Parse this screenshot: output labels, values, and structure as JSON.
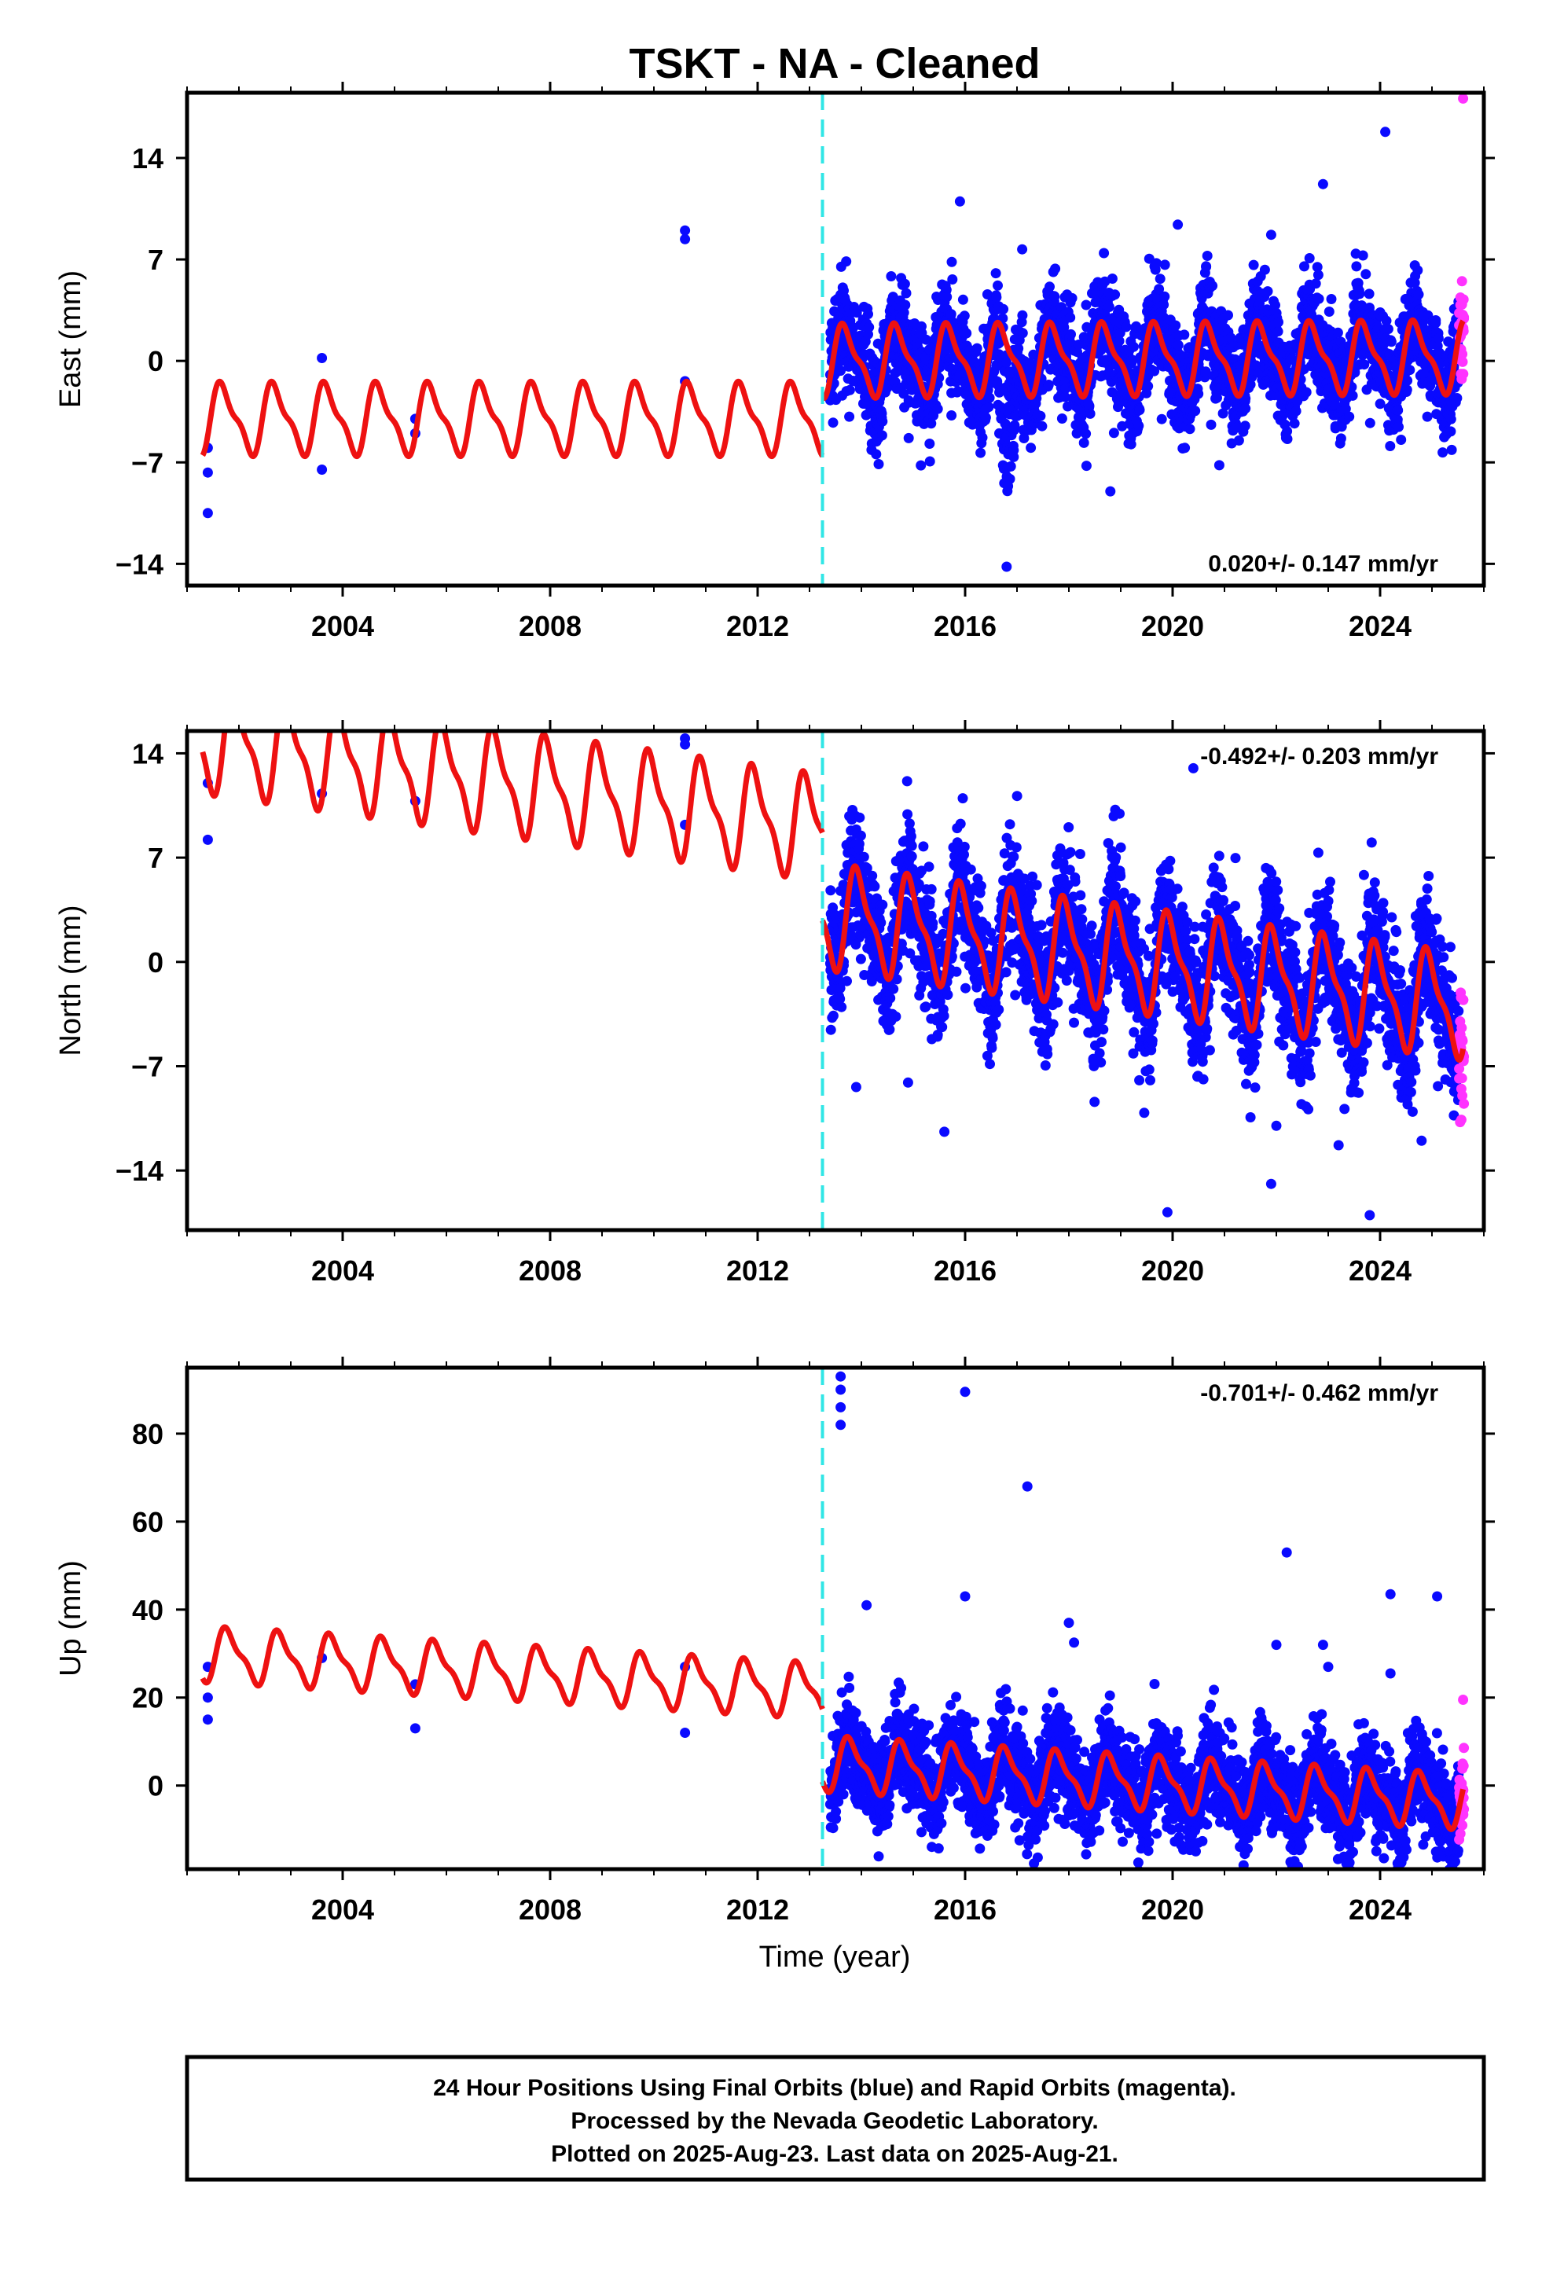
{
  "chart_data": {
    "type": "scatter",
    "title": "TSKT  - NA - Cleaned",
    "x_axis": {
      "label": "Time (year)",
      "range": [
        2001.0,
        2026.0
      ],
      "ticks": [
        2004,
        2008,
        2012,
        2016,
        2020,
        2024
      ]
    },
    "event_line": {
      "x": 2013.25,
      "color": "#30e6e6",
      "style": "dashed"
    },
    "colors": {
      "final": "#0a0aff",
      "rapid": "#ff33ff",
      "model": "#ee1111"
    },
    "rapid_start": 2025.52,
    "panels": [
      {
        "id": "east",
        "ylabel": "East (mm)",
        "ylim": [
          -15.5,
          18.5
        ],
        "yticks": [
          -14,
          -7,
          0,
          7,
          14
        ],
        "rate_text": "0.020+/- 0.147 mm/yr",
        "rate_position": "bottom-right",
        "model": {
          "pre": {
            "offset": -4.0,
            "trend": 0.0,
            "amp": 2.2,
            "phase": 0.55
          },
          "post": {
            "offset": 0.0,
            "trend": 0.02,
            "amp": 2.2,
            "phase": 0.55
          }
        },
        "scatter": {
          "noise": 1.8,
          "spike_year": 2016.8,
          "spike_depth": -11.0
        },
        "outliers": [
          {
            "x": 2001.4,
            "y": -10.5
          },
          {
            "x": 2001.4,
            "y": -7.7
          },
          {
            "x": 2001.4,
            "y": -6.0
          },
          {
            "x": 2003.6,
            "y": 0.2
          },
          {
            "x": 2003.6,
            "y": -7.5
          },
          {
            "x": 2005.4,
            "y": -5.0
          },
          {
            "x": 2005.4,
            "y": -4.0
          },
          {
            "x": 2010.6,
            "y": 9.0
          },
          {
            "x": 2010.6,
            "y": 8.4
          },
          {
            "x": 2010.6,
            "y": -1.4
          },
          {
            "x": 2015.9,
            "y": 11.0
          },
          {
            "x": 2020.1,
            "y": 9.4
          },
          {
            "x": 2022.9,
            "y": 12.2
          },
          {
            "x": 2024.1,
            "y": 15.8
          },
          {
            "x": 2021.9,
            "y": 8.7
          },
          {
            "x": 2017.1,
            "y": 7.7
          },
          {
            "x": 2018.8,
            "y": -9.0
          },
          {
            "x": 2020.9,
            "y": -7.2
          },
          {
            "x": 2016.8,
            "y": -14.2
          }
        ],
        "rapid_extra": [
          {
            "x": 2025.6,
            "y": 18.1
          }
        ]
      },
      {
        "id": "north",
        "ylabel": "North (mm)",
        "ylim": [
          -18.0,
          15.5
        ],
        "yticks": [
          -14,
          -7,
          0,
          7,
          14
        ],
        "rate_text": "-0.492+/- 0.203 mm/yr",
        "rate_position": "top-right",
        "model": {
          "pre": {
            "offset": 9.0,
            "trend": -0.492,
            "amp": 3.1,
            "phase": 0.3
          },
          "post": {
            "offset": 3.1,
            "trend": -0.492,
            "amp": 3.1,
            "phase": 0.3
          }
        },
        "scatter": {
          "noise": 2.1,
          "spike_year": 0,
          "spike_depth": 0
        },
        "outliers": [
          {
            "x": 2001.4,
            "y": 12.0
          },
          {
            "x": 2001.4,
            "y": 8.2
          },
          {
            "x": 2003.6,
            "y": 11.3
          },
          {
            "x": 2005.4,
            "y": 10.8
          },
          {
            "x": 2010.6,
            "y": 15.0
          },
          {
            "x": 2010.6,
            "y": 14.6
          },
          {
            "x": 2010.6,
            "y": 9.2
          },
          {
            "x": 2020.4,
            "y": 13.0
          },
          {
            "x": 2013.9,
            "y": -8.4
          },
          {
            "x": 2014.9,
            "y": -8.1
          },
          {
            "x": 2015.6,
            "y": -11.4
          },
          {
            "x": 2019.9,
            "y": -16.8
          },
          {
            "x": 2022.0,
            "y": -11.0
          },
          {
            "x": 2021.9,
            "y": -14.9
          },
          {
            "x": 2023.2,
            "y": -12.3
          },
          {
            "x": 2023.8,
            "y": -17.0
          },
          {
            "x": 2024.8,
            "y": -12.0
          },
          {
            "x": 2021.8,
            "y": 6.3
          }
        ],
        "rapid_extra": [
          {
            "x": 2025.6,
            "y": -6.2
          }
        ]
      },
      {
        "id": "up",
        "ylabel": "Up (mm)",
        "ylim": [
          -19.0,
          95.0
        ],
        "yticks": [
          0,
          20,
          40,
          60,
          80
        ],
        "rate_text": "-0.701+/- 0.462 mm/yr",
        "rate_position": "top-right",
        "model": {
          "pre": {
            "offset": 21.5,
            "trend": -0.701,
            "amp": 5.5,
            "phase": 0.45
          },
          "post": {
            "offset": 5.0,
            "trend": -0.701,
            "amp": 5.5,
            "phase": 0.45
          }
        },
        "scatter": {
          "noise": 5.5,
          "spike_year": 0,
          "spike_depth": 0
        },
        "outliers": [
          {
            "x": 2001.4,
            "y": 27.0
          },
          {
            "x": 2001.4,
            "y": 20.0
          },
          {
            "x": 2001.4,
            "y": 15.0
          },
          {
            "x": 2003.6,
            "y": 29.0
          },
          {
            "x": 2005.4,
            "y": 23.0
          },
          {
            "x": 2005.4,
            "y": 13.0
          },
          {
            "x": 2010.6,
            "y": 27.0
          },
          {
            "x": 2010.6,
            "y": 12.0
          },
          {
            "x": 2013.6,
            "y": 93.0
          },
          {
            "x": 2013.6,
            "y": 90.0
          },
          {
            "x": 2013.6,
            "y": 86.0
          },
          {
            "x": 2013.6,
            "y": 82.0
          },
          {
            "x": 2016.0,
            "y": 89.5
          },
          {
            "x": 2017.2,
            "y": 68.0
          },
          {
            "x": 2022.2,
            "y": 53.0
          },
          {
            "x": 2024.2,
            "y": 43.5
          },
          {
            "x": 2025.1,
            "y": 43.0
          },
          {
            "x": 2014.1,
            "y": 41.0
          },
          {
            "x": 2016.0,
            "y": 43.0
          },
          {
            "x": 2018.0,
            "y": 37.0
          },
          {
            "x": 2018.1,
            "y": 32.5
          },
          {
            "x": 2022.0,
            "y": 32.0
          },
          {
            "x": 2022.9,
            "y": 32.0
          },
          {
            "x": 2023.0,
            "y": 27.0
          },
          {
            "x": 2024.2,
            "y": 25.5
          }
        ],
        "rapid_extra": [
          {
            "x": 2025.6,
            "y": 19.5
          }
        ]
      }
    ]
  },
  "caption": {
    "line1": "24 Hour Positions Using Final Orbits (blue) and Rapid Orbits (magenta).",
    "line2": "Processed by the Nevada Geodetic Laboratory.",
    "line3": "Plotted on 2025-Aug-23. Last data on 2025-Aug-21."
  }
}
